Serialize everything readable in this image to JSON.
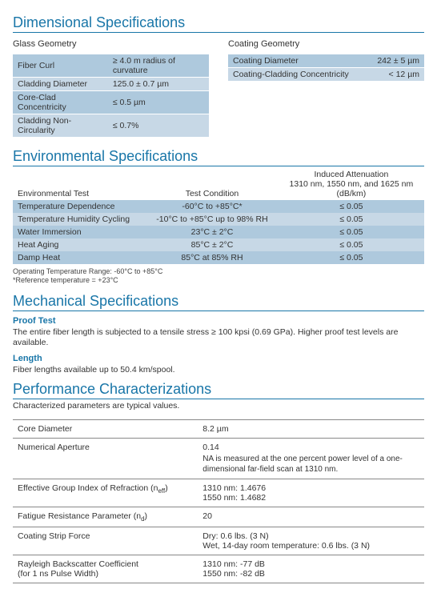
{
  "dimensional": {
    "title": "Dimensional Specifications",
    "glass_label": "Glass Geometry",
    "coating_label": "Coating Geometry",
    "glass_rows": [
      {
        "label": "Fiber Curl",
        "value": "≥ 4.0 m radius of curvature"
      },
      {
        "label": "Cladding Diameter",
        "value": "125.0 ± 0.7 µm"
      },
      {
        "label": "Core-Clad Concentricity",
        "value": "≤ 0.5 µm"
      },
      {
        "label": "Cladding Non-Circularity",
        "value": "≤ 0.7%"
      }
    ],
    "coating_rows": [
      {
        "label": "Coating Diameter",
        "value": "242 ± 5 µm"
      },
      {
        "label": "Coating-Cladding Concentricity",
        "value": "< 12 µm"
      }
    ]
  },
  "environmental": {
    "title": "Environmental Specifications",
    "head_test": "Environmental Test",
    "head_cond": "Test Condition",
    "head_atten_top": "Induced Attenuation",
    "head_atten_mid": "1310 nm, 1550 nm, and 1625 nm",
    "head_atten_bot": "(dB/km)",
    "rows": [
      {
        "test": "Temperature Dependence",
        "cond": "-60°C to +85°C*",
        "atten": "≤ 0.05"
      },
      {
        "test": "Temperature Humidity Cycling",
        "cond": "-10°C to +85°C up to 98% RH",
        "atten": "≤ 0.05"
      },
      {
        "test": "Water Immersion",
        "cond": "23°C ± 2°C",
        "atten": "≤ 0.05"
      },
      {
        "test": "Heat Aging",
        "cond": "85°C ± 2°C",
        "atten": "≤ 0.05"
      },
      {
        "test": "Damp Heat",
        "cond": "85°C at 85% RH",
        "atten": "≤ 0.05"
      }
    ],
    "footnote1": "Operating Temperature Range: -60°C to +85°C",
    "footnote2": "*Reference temperature = +23°C"
  },
  "mechanical": {
    "title": "Mechanical Specifications",
    "proof_head": "Proof Test",
    "proof_text": "The entire fiber length is subjected to a tensile stress ≥ 100 kpsi (0.69 GPa). Higher proof test levels are available.",
    "length_head": "Length",
    "length_text": "Fiber lengths available up to 50.4 km/spool."
  },
  "performance": {
    "title": "Performance Characterizations",
    "intro": "Characterized parameters are typical values.",
    "rows": [
      {
        "label": "Core Diameter",
        "value": "8.2 µm"
      },
      {
        "label": "Numerical Aperture",
        "value": "0.14",
        "note": "NA is measured at the one percent power level of a one-dimensional far-field scan at 1310 nm."
      },
      {
        "label_html": "Effective Group Index of Refraction (n<sub>eff</sub>)",
        "value_line1": "1310 nm: 1.4676",
        "value_line2": "1550 nm: 1.4682"
      },
      {
        "label_html": "Fatigue Resistance Parameter (n<sub>d</sub>)",
        "value": "20"
      },
      {
        "label": "Coating Strip Force",
        "value_line1": "Dry: 0.6 lbs. (3 N)",
        "value_line2": "Wet, 14-day room temperature: 0.6 lbs. (3 N)"
      },
      {
        "label": "Rayleigh Backscatter Coefficient",
        "label_sub": "(for 1 ns Pulse Width)",
        "value_line1": "1310 nm: -77 dB",
        "value_line2": "1550 nm: -82 dB"
      }
    ]
  },
  "colors": {
    "heading": "#1976a8",
    "row_light": "#c7d8e6",
    "row_band": "#aec9dd"
  }
}
